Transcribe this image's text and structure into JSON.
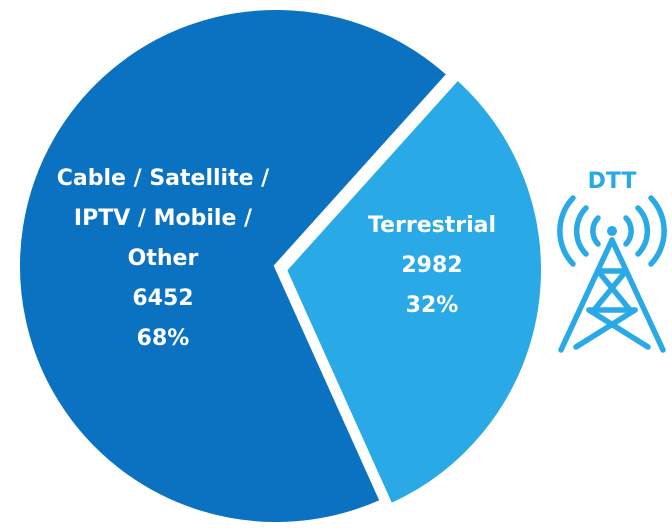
{
  "chart_data": {
    "type": "pie",
    "slices": [
      {
        "label_lines": [
          "Cable / Satellite /",
          "IPTV / Mobile /",
          "Other"
        ],
        "value": 6452,
        "value_text": "6452",
        "percent_text": "68%",
        "color": "#0b72c1"
      },
      {
        "label_lines": [
          "Terrestrial"
        ],
        "value": 2982,
        "value_text": "2982",
        "percent_text": "32%",
        "color": "#29a9e6"
      }
    ]
  },
  "icon": {
    "name": "broadcast-tower-icon",
    "label": "DTT",
    "color": "#29a9e6"
  }
}
